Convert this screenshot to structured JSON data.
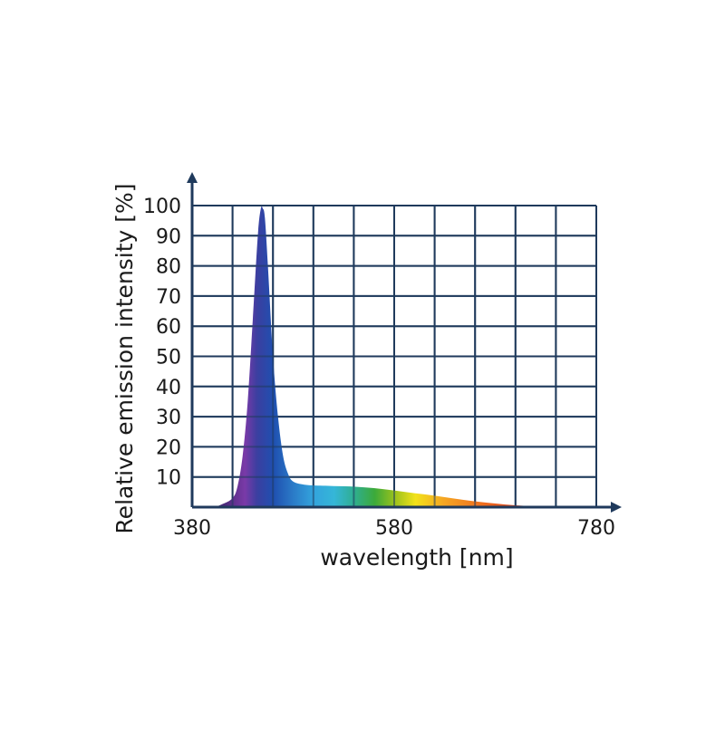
{
  "chart_data": {
    "type": "area",
    "title": "",
    "xlabel": "wavelength [nm]",
    "ylabel": "Relative emission intensity [%]",
    "xlim": [
      380,
      780
    ],
    "ylim": [
      0,
      100
    ],
    "x_ticks": [
      380,
      580,
      780
    ],
    "x_tick_labels": [
      "380",
      "580",
      "780"
    ],
    "y_ticks": [
      10,
      20,
      30,
      40,
      50,
      60,
      70,
      80,
      90,
      100
    ],
    "y_tick_labels": [
      "10",
      "20",
      "30",
      "40",
      "50",
      "60",
      "70",
      "80",
      "90",
      "100"
    ],
    "grid": true,
    "grid_x_step": 40,
    "grid_y_step": 10,
    "axis_color": "#1f3a5c",
    "fill_style": "visible-spectrum gradient",
    "x": [
      380,
      400,
      410,
      420,
      425,
      430,
      435,
      440,
      445,
      448,
      450,
      452,
      455,
      460,
      465,
      470,
      475,
      480,
      490,
      500,
      520,
      540,
      560,
      580,
      600,
      620,
      640,
      660,
      680,
      700,
      720,
      740,
      760,
      780
    ],
    "y": [
      0,
      0,
      1,
      3,
      7,
      17,
      35,
      62,
      90,
      99,
      99,
      96,
      80,
      50,
      30,
      17,
      11,
      8.5,
      7.5,
      7.2,
      7.0,
      6.8,
      6.3,
      5.5,
      4.6,
      3.8,
      2.8,
      1.9,
      1.2,
      0.6,
      0.3,
      0.15,
      0.05,
      0
    ]
  }
}
